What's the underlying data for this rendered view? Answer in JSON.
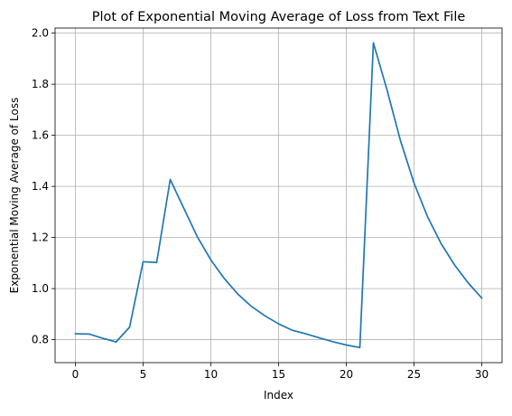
{
  "chart_data": {
    "type": "line",
    "title": "Plot of Exponential Moving Average of Loss from Text File",
    "xlabel": "Index",
    "ylabel": "Exponential Moving Average of Loss",
    "xlim": [
      -1.5,
      31.5
    ],
    "ylim": [
      0.71,
      2.02
    ],
    "xticks": [
      0,
      5,
      10,
      15,
      20,
      25,
      30
    ],
    "xtick_labels": [
      "0",
      "5",
      "10",
      "15",
      "20",
      "25",
      "30"
    ],
    "yticks": [
      0.8,
      1.0,
      1.2,
      1.4,
      1.6,
      1.8,
      2.0
    ],
    "ytick_labels": [
      "0.8",
      "1.0",
      "1.2",
      "1.4",
      "1.6",
      "1.8",
      "2.0"
    ],
    "grid": true,
    "series": [
      {
        "color": "#1f77b4",
        "x": [
          0,
          1,
          2,
          3,
          4,
          5,
          6,
          7,
          8,
          9,
          10,
          11,
          12,
          13,
          14,
          15,
          16,
          17,
          18,
          19,
          20,
          21,
          22,
          23,
          24,
          25,
          26,
          27,
          28,
          29,
          30
        ],
        "values": [
          0.823,
          0.822,
          0.806,
          0.791,
          0.849,
          1.105,
          1.102,
          1.427,
          1.315,
          1.203,
          1.112,
          1.039,
          0.978,
          0.93,
          0.893,
          0.862,
          0.837,
          0.823,
          0.807,
          0.792,
          0.779,
          0.769,
          1.962,
          1.779,
          1.579,
          1.413,
          1.281,
          1.176,
          1.092,
          1.022,
          0.963
        ]
      }
    ]
  }
}
